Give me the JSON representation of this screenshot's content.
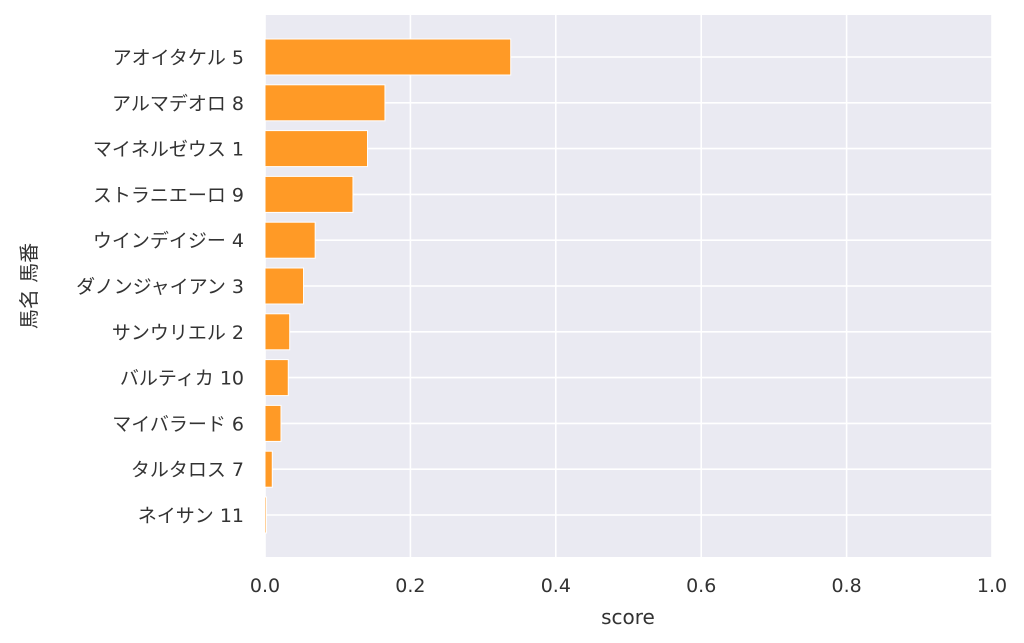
{
  "chart_data": {
    "type": "bar",
    "orientation": "horizontal",
    "categories": [
      "アオイタケル 5",
      "アルマデオロ 8",
      "マイネルゼウス 1",
      "ストラニエーロ 9",
      "ウインデイジー 4",
      "ダノンジャイアン 3",
      "サンウリエル 2",
      "バルティカ 10",
      "マイバラード 6",
      "タルタロス 7",
      "ネイサン 11"
    ],
    "values": [
      0.338,
      0.165,
      0.141,
      0.121,
      0.069,
      0.053,
      0.034,
      0.032,
      0.022,
      0.01,
      0.002
    ],
    "xlabel": "score",
    "ylabel": "馬名 馬番",
    "xlim": [
      0,
      1
    ],
    "xticks": [
      "0.0",
      "0.2",
      "0.4",
      "0.6",
      "0.8",
      "1.0"
    ],
    "grid": true,
    "colors": {
      "bar": "#FF9A26",
      "bar_edge": "#FFFFFF",
      "plot_background": "#EAEAF2",
      "grid": "#FFFFFF"
    }
  }
}
